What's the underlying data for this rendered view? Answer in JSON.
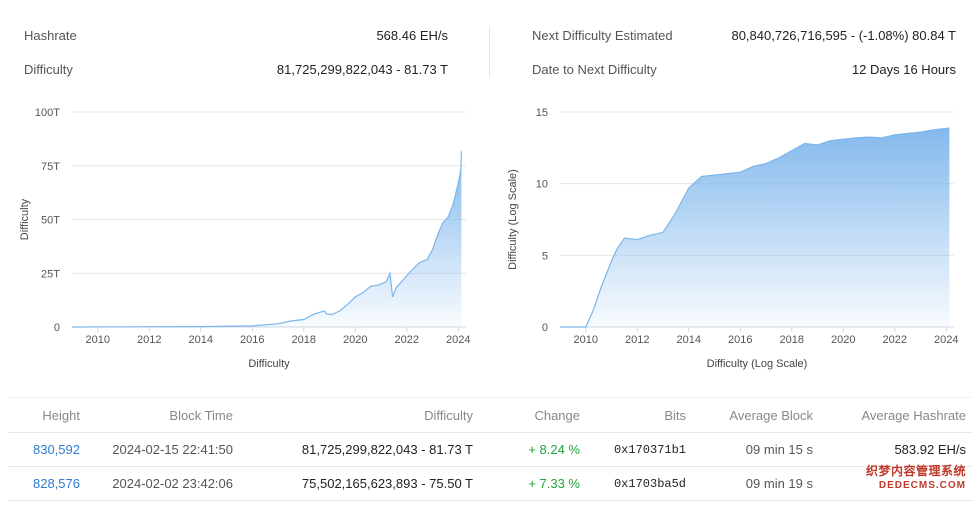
{
  "stats": {
    "hashrate": {
      "label": "Hashrate",
      "value": "568.46 EH/s"
    },
    "difficulty": {
      "label": "Difficulty",
      "value": "81,725,299,822,043 - ",
      "value_bold": "81.73 T"
    },
    "next_difficulty": {
      "label": "Next Difficulty Estimated",
      "value": "80,840,726,716,595 - (-1.08%) 80.84 T"
    },
    "date_to_next": {
      "label": "Date to Next Difficulty",
      "value": "12 Days 16 Hours"
    }
  },
  "chart_data": [
    {
      "type": "area",
      "xlabel": "Difficulty",
      "ylabel": "Difficulty",
      "x_ticks": [
        "2010",
        "2012",
        "2014",
        "2016",
        "2018",
        "2020",
        "2022",
        "2024"
      ],
      "y_ticks": [
        "0",
        "25T",
        "50T",
        "75T",
        "100T"
      ],
      "xlim": [
        2009,
        2024.3
      ],
      "ylim": [
        0,
        100
      ],
      "grid": true,
      "color": "#7cb5ec",
      "x": [
        2009.0,
        2014.0,
        2016.0,
        2017.0,
        2017.5,
        2018.0,
        2018.4,
        2018.8,
        2018.9,
        2019.1,
        2019.4,
        2019.7,
        2020.0,
        2020.3,
        2020.6,
        2020.9,
        2021.2,
        2021.35,
        2021.45,
        2021.6,
        2021.9,
        2022.2,
        2022.5,
        2022.8,
        2023.0,
        2023.2,
        2023.4,
        2023.6,
        2023.8,
        2024.0,
        2024.1,
        2024.12
      ],
      "values": [
        0,
        0.2,
        0.5,
        1.5,
        2.8,
        3.5,
        6.0,
        7.5,
        6.0,
        5.8,
        7.5,
        10.5,
        14.0,
        16.0,
        19.0,
        19.5,
        21.0,
        25.0,
        14.0,
        18.5,
        22.5,
        26.5,
        30.0,
        31.5,
        36.0,
        43.0,
        48.5,
        51.0,
        57.0,
        67.0,
        73.0,
        81.73
      ]
    },
    {
      "type": "area",
      "xlabel": "Difficulty (Log Scale)",
      "ylabel": "Difficulty (Log Scale)",
      "x_ticks": [
        "2010",
        "2012",
        "2014",
        "2016",
        "2018",
        "2020",
        "2022",
        "2024"
      ],
      "y_ticks": [
        "0",
        "5",
        "10",
        "15"
      ],
      "xlim": [
        2009,
        2024.3
      ],
      "ylim": [
        0,
        15
      ],
      "grid": true,
      "color": "#7cb5ec",
      "x": [
        2009.0,
        2010.0,
        2010.3,
        2010.6,
        2011.0,
        2011.2,
        2011.5,
        2012.0,
        2012.5,
        2013.0,
        2013.5,
        2014.0,
        2014.5,
        2015.0,
        2015.5,
        2016.0,
        2016.5,
        2017.0,
        2017.5,
        2018.0,
        2018.5,
        2019.0,
        2019.5,
        2020.0,
        2020.5,
        2021.0,
        2021.5,
        2022.0,
        2022.5,
        2023.0,
        2023.5,
        2024.0,
        2024.12
      ],
      "values": [
        0,
        0.0,
        1.2,
        2.8,
        4.6,
        5.4,
        6.2,
        6.1,
        6.4,
        6.6,
        8.0,
        9.7,
        10.5,
        10.6,
        10.7,
        10.8,
        11.2,
        11.4,
        11.8,
        12.3,
        12.8,
        12.7,
        13.0,
        13.1,
        13.2,
        13.25,
        13.2,
        13.4,
        13.5,
        13.6,
        13.75,
        13.85,
        13.9
      ]
    }
  ],
  "table": {
    "headers": {
      "height": "Height",
      "block_time": "Block Time",
      "difficulty": "Difficulty",
      "change": "Change",
      "bits": "Bits",
      "average_block": "Average Block",
      "average_hashrate": "Average Hashrate"
    },
    "rows": [
      {
        "height": "830,592",
        "block_time": "2024-02-15 22:41:50",
        "difficulty": "81,725,299,822,043 - 81.73 T",
        "change": "+ 8.24 %",
        "bits": "0x170371b1",
        "average_block": "09 min 15 s",
        "average_hashrate": "583.92 EH/s"
      },
      {
        "height": "828,576",
        "block_time": "2024-02-02 23:42:06",
        "difficulty": "75,502,165,623,893 - 75.50 T",
        "change": "+ 7.33 %",
        "bits": "0x1703ba5d",
        "average_block": "09 min 19 s",
        "average_hashrate": ""
      }
    ]
  },
  "watermark": {
    "line1": "织梦内容管理系统",
    "line2": "DEDECMS.COM"
  }
}
